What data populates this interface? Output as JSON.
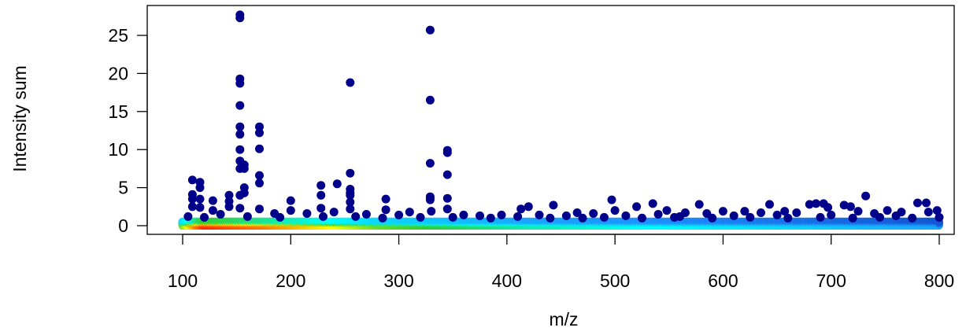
{
  "chart_data": {
    "type": "scatter",
    "title": "",
    "xlabel": "m/z",
    "ylabel": "Intensity sum",
    "xlim": [
      100,
      800
    ],
    "ylim": [
      0,
      27.5
    ],
    "xticks": [
      "100",
      "200",
      "300",
      "400",
      "500",
      "600",
      "700",
      "800"
    ],
    "yticks": [
      "0",
      "5",
      "10",
      "15",
      "20",
      "25"
    ],
    "grid": false,
    "legend": "none",
    "color_scale": {
      "description": "point color encodes local point density (dense = red/yellow, sparse = dark blue)",
      "stops": [
        "#00008b",
        "#1e90ff",
        "#00ffff",
        "#32cd32",
        "#ffff00",
        "#ff7f00",
        "#ff2a00"
      ]
    },
    "series": [
      {
        "points": [
          [
            153,
            27.7
          ],
          [
            153,
            27.3
          ],
          [
            329,
            25.7
          ],
          [
            153,
            19.3
          ],
          [
            153,
            18.7
          ],
          [
            255,
            18.8
          ],
          [
            329,
            16.5
          ],
          [
            153,
            15.8
          ],
          [
            153,
            13.0
          ],
          [
            171,
            13.0
          ],
          [
            171,
            12.2
          ],
          [
            153,
            12.0
          ],
          [
            153,
            10.0
          ],
          [
            171,
            10.1
          ],
          [
            345,
            9.9
          ],
          [
            345,
            9.6
          ],
          [
            153,
            8.5
          ],
          [
            329,
            8.2
          ],
          [
            157,
            8.0
          ],
          [
            157,
            7.5
          ],
          [
            153,
            7.5
          ],
          [
            255,
            6.9
          ],
          [
            171,
            6.6
          ],
          [
            345,
            6.7
          ],
          [
            109,
            6.0
          ],
          [
            116,
            5.7
          ],
          [
            171,
            5.6
          ],
          [
            228,
            5.3
          ],
          [
            243,
            5.5
          ],
          [
            116,
            5.0
          ],
          [
            157,
            5.0
          ],
          [
            255,
            4.8
          ],
          [
            255,
            4.3
          ],
          [
            109,
            4.1
          ],
          [
            157,
            4.3
          ],
          [
            153,
            4.0
          ],
          [
            143,
            4.0
          ],
          [
            228,
            4.0
          ],
          [
            255,
            4.0
          ],
          [
            732,
            3.9
          ],
          [
            329,
            3.8
          ],
          [
            329,
            3.6
          ],
          [
            109,
            3.5
          ],
          [
            116,
            3.5
          ],
          [
            200,
            3.3
          ],
          [
            288,
            3.5
          ],
          [
            497,
            3.4
          ],
          [
            329,
            3.4
          ],
          [
            345,
            3.6
          ],
          [
            128,
            3.3
          ],
          [
            143,
            3.2
          ],
          [
            255,
            3.1
          ],
          [
            535,
            2.9
          ],
          [
            578,
            2.8
          ],
          [
            643,
            2.8
          ],
          [
            680,
            2.8
          ],
          [
            686,
            2.9
          ],
          [
            693,
            2.9
          ],
          [
            780,
            3.0
          ],
          [
            788,
            3.0
          ],
          [
            443,
            2.7
          ],
          [
            420,
            2.5
          ],
          [
            413,
            2.2
          ],
          [
            520,
            2.5
          ],
          [
            712,
            2.7
          ],
          [
            718,
            2.5
          ],
          [
            697,
            2.4
          ],
          [
            752,
            2.0
          ],
          [
            798,
            2.0
          ],
          [
            109,
            2.5
          ],
          [
            116,
            2.4
          ],
          [
            143,
            2.5
          ],
          [
            153,
            2.3
          ],
          [
            171,
            2.2
          ],
          [
            228,
            2.3
          ],
          [
            255,
            2.2
          ],
          [
            288,
            2.1
          ],
          [
            345,
            2.2
          ],
          [
            500,
            2.0
          ],
          [
            548,
            2.0
          ],
          [
            600,
            1.9
          ],
          [
            620,
            1.9
          ],
          [
            657,
            1.9
          ],
          [
            725,
            1.9
          ],
          [
            765,
            1.8
          ],
          [
            128,
            2.0
          ],
          [
            200,
            2.0
          ],
          [
            240,
            1.8
          ],
          [
            310,
            1.8
          ],
          [
            330,
            1.9
          ],
          [
            465,
            1.7
          ],
          [
            480,
            1.6
          ],
          [
            565,
            1.7
          ],
          [
            585,
            1.6
          ],
          [
            635,
            1.7
          ],
          [
            668,
            1.7
          ],
          [
            740,
            1.6
          ],
          [
            790,
            1.8
          ],
          [
            105,
            1.2
          ],
          [
            135,
            1.5
          ],
          [
            185,
            1.6
          ],
          [
            215,
            1.6
          ],
          [
            270,
            1.5
          ],
          [
            300,
            1.4
          ],
          [
            360,
            1.4
          ],
          [
            375,
            1.3
          ],
          [
            395,
            1.4
          ],
          [
            430,
            1.4
          ],
          [
            455,
            1.3
          ],
          [
            510,
            1.3
          ],
          [
            540,
            1.5
          ],
          [
            560,
            1.2
          ],
          [
            610,
            1.3
          ],
          [
            650,
            1.4
          ],
          [
            700,
            1.4
          ],
          [
            760,
            1.3
          ],
          [
            800,
            1.1
          ],
          [
            120,
            1.1
          ],
          [
            160,
            1.2
          ],
          [
            190,
            1.1
          ],
          [
            230,
            1.2
          ],
          [
            260,
            1.2
          ],
          [
            285,
            1.0
          ],
          [
            320,
            1.1
          ],
          [
            350,
            1.1
          ],
          [
            385,
            1.0
          ],
          [
            410,
            1.2
          ],
          [
            440,
            1.0
          ],
          [
            470,
            1.0
          ],
          [
            490,
            1.1
          ],
          [
            525,
            1.0
          ],
          [
            555,
            1.1
          ],
          [
            590,
            1.0
          ],
          [
            625,
            1.1
          ],
          [
            660,
            1.0
          ],
          [
            690,
            1.1
          ],
          [
            720,
            1.0
          ],
          [
            745,
            1.1
          ],
          [
            775,
            1.0
          ]
        ]
      }
    ]
  }
}
